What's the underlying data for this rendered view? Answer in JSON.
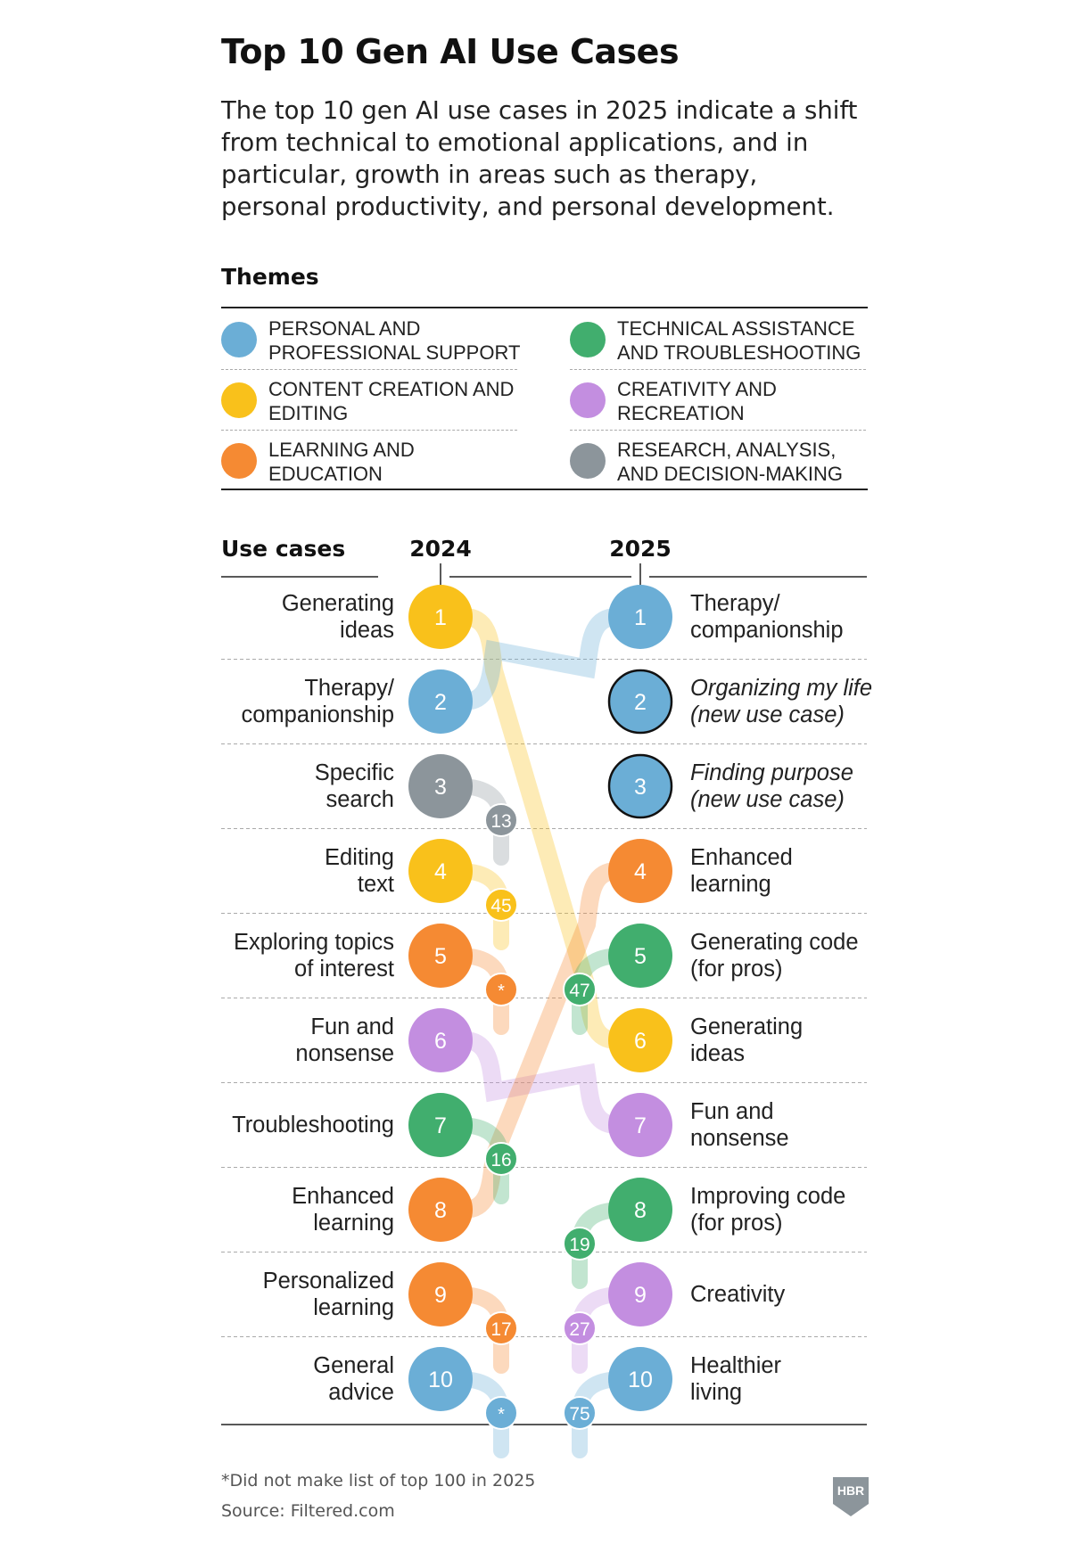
{
  "header": {
    "title": "Top 10 Gen AI Use Cases",
    "subtitle": "The top 10 gen AI use cases in 2025 indicate a shift from technical to emotional applications, and in particular, growth in areas such as therapy, personal productivity, and personal development."
  },
  "themes": {
    "heading": "Themes",
    "items": [
      {
        "id": "personal",
        "label": "Personal and professional support",
        "color": "#6BAED6"
      },
      {
        "id": "technical",
        "label": "Technical assistance and troubleshooting",
        "color": "#41AE6E"
      },
      {
        "id": "content",
        "label": "Content creation and editing",
        "color": "#F9C11B"
      },
      {
        "id": "creativity",
        "label": "Creativity and recreation",
        "color": "#C38EE0"
      },
      {
        "id": "learning",
        "label": "Learning and education",
        "color": "#F58A33"
      },
      {
        "id": "research",
        "label": "Research, analysis, and decision-making",
        "color": "#8C959B"
      }
    ]
  },
  "footnote": "*Did not make list of top 100 in 2025",
  "source": "Source: Filtered.com",
  "logo_text": "HBR",
  "chart_data": {
    "type": "table",
    "heading": "Use cases",
    "year_left": "2024",
    "year_right": "2025",
    "left_2024": [
      {
        "rank": 1,
        "name": "Generating ideas",
        "lines": [
          "Generating",
          "ideas"
        ],
        "theme": "content",
        "rank_2025": 6,
        "marker": null
      },
      {
        "rank": 2,
        "name": "Therapy/ companionship",
        "lines": [
          "Therapy/",
          "companionship"
        ],
        "theme": "personal",
        "rank_2025": 1,
        "marker": null
      },
      {
        "rank": 3,
        "name": "Specific search",
        "lines": [
          "Specific",
          "search"
        ],
        "theme": "research",
        "rank_2025": 13,
        "marker": "13"
      },
      {
        "rank": 4,
        "name": "Editing text",
        "lines": [
          "Editing",
          "text"
        ],
        "theme": "content",
        "rank_2025": 45,
        "marker": "45"
      },
      {
        "rank": 5,
        "name": "Exploring topics of interest",
        "lines": [
          "Exploring topics",
          "of interest"
        ],
        "theme": "learning",
        "rank_2025": null,
        "marker": "*"
      },
      {
        "rank": 6,
        "name": "Fun and nonsense",
        "lines": [
          "Fun and",
          "nonsense"
        ],
        "theme": "creativity",
        "rank_2025": 7,
        "marker": null
      },
      {
        "rank": 7,
        "name": "Troubleshooting",
        "lines": [
          "Troubleshooting"
        ],
        "theme": "technical",
        "rank_2025": 16,
        "marker": "16"
      },
      {
        "rank": 8,
        "name": "Enhanced learning",
        "lines": [
          "Enhanced",
          "learning"
        ],
        "theme": "learning",
        "rank_2025": 4,
        "marker": null
      },
      {
        "rank": 9,
        "name": "Personalized learning",
        "lines": [
          "Personalized",
          "learning"
        ],
        "theme": "learning",
        "rank_2025": 17,
        "marker": "17"
      },
      {
        "rank": 10,
        "name": "General advice",
        "lines": [
          "General",
          "advice"
        ],
        "theme": "personal",
        "rank_2025": null,
        "marker": "*"
      }
    ],
    "right_2025": [
      {
        "rank": 1,
        "name": "Therapy/ companionship",
        "lines": [
          "Therapy/",
          "companionship"
        ],
        "theme": "personal",
        "rank_2024": 2,
        "marker": null,
        "new": false
      },
      {
        "rank": 2,
        "name": "Organizing my life (new use case)",
        "lines": [
          "Organizing my life",
          "(new use case)"
        ],
        "theme": "personal",
        "rank_2024": null,
        "marker": null,
        "new": true
      },
      {
        "rank": 3,
        "name": "Finding purpose (new use case)",
        "lines": [
          "Finding purpose",
          "(new use case)"
        ],
        "theme": "personal",
        "rank_2024": null,
        "marker": null,
        "new": true
      },
      {
        "rank": 4,
        "name": "Enhanced learning",
        "lines": [
          "Enhanced",
          "learning"
        ],
        "theme": "learning",
        "rank_2024": 8,
        "marker": null,
        "new": false
      },
      {
        "rank": 5,
        "name": "Generating code (for pros)",
        "lines": [
          "Generating code",
          "(for pros)"
        ],
        "theme": "technical",
        "rank_2024": 47,
        "marker": "47",
        "new": false
      },
      {
        "rank": 6,
        "name": "Generating ideas",
        "lines": [
          "Generating",
          "ideas"
        ],
        "theme": "content",
        "rank_2024": 1,
        "marker": null,
        "new": false
      },
      {
        "rank": 7,
        "name": "Fun and nonsense",
        "lines": [
          "Fun and",
          "nonsense"
        ],
        "theme": "creativity",
        "rank_2024": 6,
        "marker": null,
        "new": false
      },
      {
        "rank": 8,
        "name": "Improving code (for pros)",
        "lines": [
          "Improving code",
          "(for pros)"
        ],
        "theme": "technical",
        "rank_2024": 19,
        "marker": "19",
        "new": false
      },
      {
        "rank": 9,
        "name": "Creativity",
        "lines": [
          "Creativity"
        ],
        "theme": "creativity",
        "rank_2024": 27,
        "marker": "27",
        "new": false
      },
      {
        "rank": 10,
        "name": "Healthier living",
        "lines": [
          "Healthier",
          "living"
        ],
        "theme": "personal",
        "rank_2024": 75,
        "marker": "75",
        "new": false
      }
    ]
  }
}
